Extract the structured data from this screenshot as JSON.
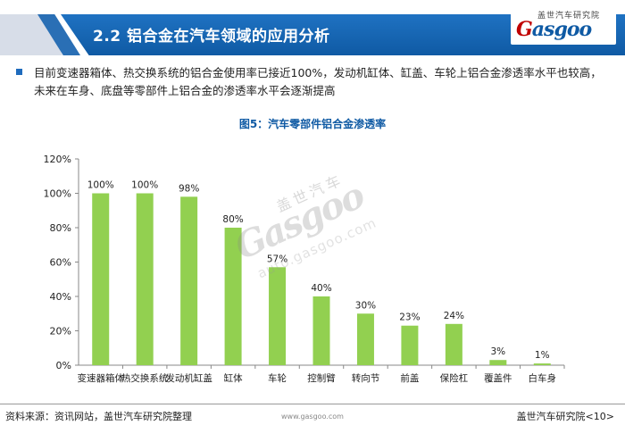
{
  "header": {
    "title": "2.2 铝合金在汽车领域的应用分析",
    "logo_cn": "盖世汽车研究院",
    "logo_word_red": "G",
    "logo_word_rest": "asgoo"
  },
  "bullet": {
    "text": "目前变速器箱体、热交换系统的铝合金使用率已接近100%，发动机缸体、缸盖、车轮上铝合金渗透率水平也较高，未来在车身、底盘等零部件上铝合金的渗透率水平会逐渐提高"
  },
  "chart_title": "图5：汽车零部件铝合金渗透率",
  "watermark": {
    "cn": "盖世汽车",
    "word": "Gasgoo",
    "url": "auto.gasgoo.com"
  },
  "chart_data": {
    "type": "bar",
    "categories": [
      "变速器箱体",
      "热交换系统",
      "发动机缸盖",
      "缸体",
      "车轮",
      "控制臂",
      "转向节",
      "前盖",
      "保险杠",
      "覆盖件",
      "白车身"
    ],
    "values": [
      100,
      100,
      98,
      80,
      57,
      40,
      30,
      23,
      24,
      3,
      1
    ],
    "data_labels": [
      "100%",
      "100%",
      "98%",
      "80%",
      "57%",
      "40%",
      "30%",
      "23%",
      "24%",
      "3%",
      "1%"
    ],
    "y_ticks": [
      "0%",
      "20%",
      "40%",
      "60%",
      "80%",
      "100%",
      "120%"
    ],
    "ylim": [
      0,
      120
    ],
    "bar_color": "#92d050",
    "grid": false,
    "title": "图5：汽车零部件铝合金渗透率"
  },
  "footer": {
    "source": "资料来源：资讯网站，盖世汽车研究院整理",
    "url": "www.gasgoo.com",
    "page": "盖世汽车研究院<10>"
  }
}
